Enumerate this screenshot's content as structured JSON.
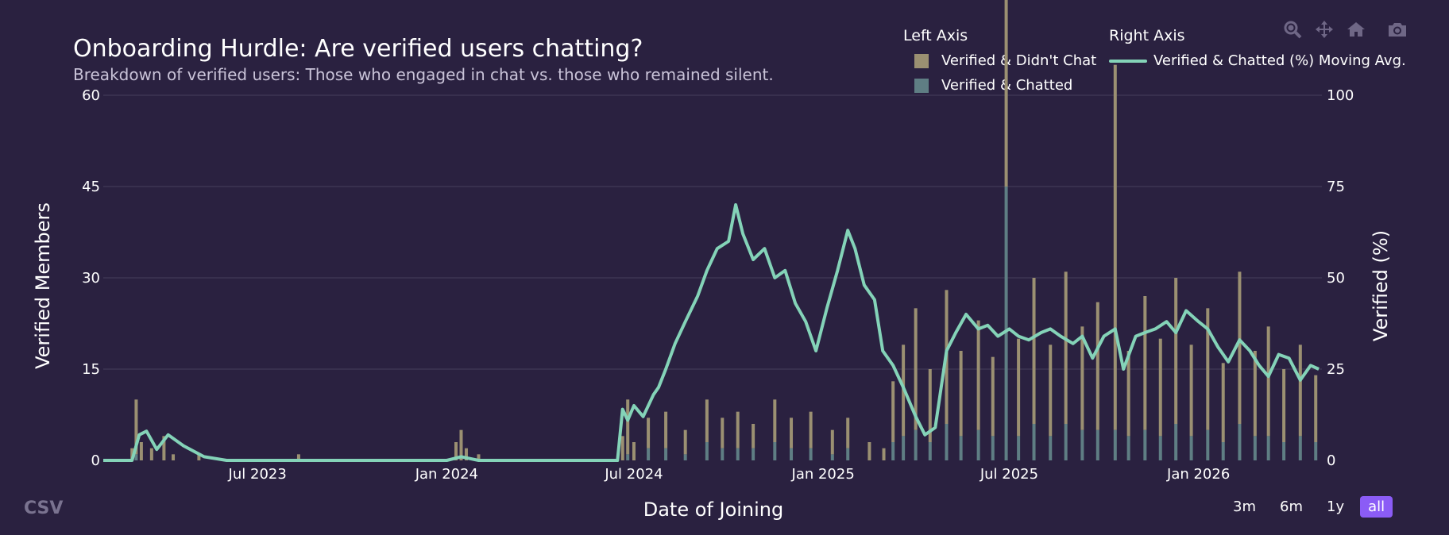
{
  "header": {
    "title": "Onboarding Hurdle: Are verified users chatting?",
    "subtitle": "Breakdown of verified users: Those who engaged in chat vs. those who remained silent."
  },
  "legend": {
    "left_group": "Left Axis",
    "right_group": "Right Axis",
    "items": [
      {
        "label": "Verified & Didn't Chat",
        "color": "#9b9072"
      },
      {
        "label": "Verified & Chatted",
        "color": "#5f7e84"
      },
      {
        "label": "Verified & Chatted (%) Moving Avg.",
        "color": "#84d3b8"
      }
    ]
  },
  "modebar": [
    "zoom-icon",
    "pan-icon",
    "home-icon",
    "camera-icon"
  ],
  "export_label": "CSV",
  "range_buttons": [
    {
      "label": "3m",
      "active": false
    },
    {
      "label": "6m",
      "active": false
    },
    {
      "label": "1y",
      "active": false
    },
    {
      "label": "all",
      "active": true
    }
  ],
  "colors": {
    "background": "#2a2140",
    "grid": "#3d3553",
    "didnt_chat": "#9b9072",
    "chatted": "#5f7e84",
    "moving_avg": "#84d3b8",
    "active_button": "#8b5cf6"
  },
  "chart_data": {
    "type": "bar",
    "barmode": "stack",
    "xlabel": "Date of Joining",
    "ylabel": "Verified Members",
    "y2label": "Verified (%)",
    "xlim": [
      "2023-02-01",
      "2026-05-01"
    ],
    "ylim": [
      0,
      60
    ],
    "y2lim": [
      0,
      100
    ],
    "x_ticks": [
      {
        "date": "2023-07-01",
        "label": "Jul 2023"
      },
      {
        "date": "2024-01-01",
        "label": "Jan 2024"
      },
      {
        "date": "2024-07-01",
        "label": "Jul 2024"
      },
      {
        "date": "2025-01-01",
        "label": "Jan 2025"
      },
      {
        "date": "2025-07-01",
        "label": "Jul 2025"
      },
      {
        "date": "2026-01-01",
        "label": "Jan 2026"
      }
    ],
    "y_ticks": [
      0,
      15,
      30,
      45,
      60
    ],
    "y2_ticks": [
      0,
      25,
      50,
      75,
      100
    ],
    "grid": true,
    "legend_position": "top-right",
    "series": [
      {
        "name": "Verified & Didn't Chat",
        "axis": "left",
        "type": "bar",
        "points": [
          [
            "2023-03-01",
            2
          ],
          [
            "2023-03-05",
            9
          ],
          [
            "2023-03-10",
            3
          ],
          [
            "2023-03-20",
            2
          ],
          [
            "2023-04-01",
            4
          ],
          [
            "2023-04-10",
            1
          ],
          [
            "2023-05-05",
            1
          ],
          [
            "2023-08-10",
            1
          ],
          [
            "2024-01-10",
            3
          ],
          [
            "2024-01-15",
            5
          ],
          [
            "2024-01-20",
            2
          ],
          [
            "2024-02-01",
            1
          ],
          [
            "2024-06-20",
            4
          ],
          [
            "2024-06-25",
            9
          ],
          [
            "2024-07-01",
            3
          ],
          [
            "2024-07-15",
            5
          ],
          [
            "2024-08-01",
            6
          ],
          [
            "2024-08-20",
            4
          ],
          [
            "2024-09-10",
            7
          ],
          [
            "2024-09-25",
            5
          ],
          [
            "2024-10-10",
            6
          ],
          [
            "2024-10-25",
            4
          ],
          [
            "2024-11-15",
            7
          ],
          [
            "2024-12-01",
            5
          ],
          [
            "2024-12-20",
            6
          ],
          [
            "2025-01-10",
            4
          ],
          [
            "2025-01-25",
            5
          ],
          [
            "2025-02-15",
            3
          ],
          [
            "2025-03-01",
            2
          ],
          [
            "2025-03-10",
            10
          ],
          [
            "2025-03-20",
            15
          ],
          [
            "2025-04-01",
            20
          ],
          [
            "2025-04-15",
            12
          ],
          [
            "2025-05-01",
            22
          ],
          [
            "2025-05-15",
            14
          ],
          [
            "2025-06-01",
            18
          ],
          [
            "2025-06-15",
            13
          ],
          [
            "2025-06-28",
            60
          ],
          [
            "2025-07-10",
            16
          ],
          [
            "2025-07-25",
            24
          ],
          [
            "2025-08-10",
            15
          ],
          [
            "2025-08-25",
            25
          ],
          [
            "2025-09-10",
            17
          ],
          [
            "2025-09-25",
            21
          ],
          [
            "2025-10-12",
            60
          ],
          [
            "2025-10-25",
            14
          ],
          [
            "2025-11-10",
            22
          ],
          [
            "2025-11-25",
            16
          ],
          [
            "2025-12-10",
            24
          ],
          [
            "2025-12-25",
            15
          ],
          [
            "2026-01-10",
            20
          ],
          [
            "2026-01-25",
            13
          ],
          [
            "2026-02-10",
            25
          ],
          [
            "2026-02-25",
            14
          ],
          [
            "2026-03-10",
            18
          ],
          [
            "2026-03-25",
            12
          ],
          [
            "2026-04-10",
            15
          ],
          [
            "2026-04-25",
            11
          ]
        ]
      },
      {
        "name": "Verified & Chatted",
        "axis": "left",
        "type": "bar",
        "points": [
          [
            "2023-03-05",
            1
          ],
          [
            "2024-06-25",
            1
          ],
          [
            "2024-07-15",
            2
          ],
          [
            "2024-08-01",
            2
          ],
          [
            "2024-08-20",
            1
          ],
          [
            "2024-09-10",
            3
          ],
          [
            "2024-09-25",
            2
          ],
          [
            "2024-10-10",
            2
          ],
          [
            "2024-10-25",
            2
          ],
          [
            "2024-11-15",
            3
          ],
          [
            "2024-12-01",
            2
          ],
          [
            "2024-12-20",
            2
          ],
          [
            "2025-01-10",
            1
          ],
          [
            "2025-01-25",
            2
          ],
          [
            "2025-03-10",
            3
          ],
          [
            "2025-03-20",
            4
          ],
          [
            "2025-04-01",
            5
          ],
          [
            "2025-04-15",
            3
          ],
          [
            "2025-05-01",
            6
          ],
          [
            "2025-05-15",
            4
          ],
          [
            "2025-06-01",
            5
          ],
          [
            "2025-06-15",
            4
          ],
          [
            "2025-06-28",
            45
          ],
          [
            "2025-07-10",
            4
          ],
          [
            "2025-07-25",
            6
          ],
          [
            "2025-08-10",
            4
          ],
          [
            "2025-08-25",
            6
          ],
          [
            "2025-09-10",
            5
          ],
          [
            "2025-09-25",
            5
          ],
          [
            "2025-10-12",
            5
          ],
          [
            "2025-10-25",
            4
          ],
          [
            "2025-11-10",
            5
          ],
          [
            "2025-11-25",
            4
          ],
          [
            "2025-12-10",
            6
          ],
          [
            "2025-12-25",
            4
          ],
          [
            "2026-01-10",
            5
          ],
          [
            "2026-01-25",
            3
          ],
          [
            "2026-02-10",
            6
          ],
          [
            "2026-02-25",
            4
          ],
          [
            "2026-03-10",
            4
          ],
          [
            "2026-03-25",
            3
          ],
          [
            "2026-04-10",
            4
          ],
          [
            "2026-04-25",
            3
          ]
        ]
      },
      {
        "name": "Verified & Chatted (%) Moving Avg.",
        "axis": "right",
        "type": "line",
        "points": [
          [
            "2023-02-01",
            0
          ],
          [
            "2023-03-01",
            0
          ],
          [
            "2023-03-08",
            7
          ],
          [
            "2023-03-15",
            8
          ],
          [
            "2023-03-25",
            3
          ],
          [
            "2023-04-05",
            7
          ],
          [
            "2023-04-20",
            4
          ],
          [
            "2023-05-10",
            1
          ],
          [
            "2023-06-01",
            0
          ],
          [
            "2024-01-01",
            0
          ],
          [
            "2024-01-15",
            1
          ],
          [
            "2024-02-01",
            0
          ],
          [
            "2024-06-15",
            0
          ],
          [
            "2024-06-20",
            14
          ],
          [
            "2024-06-25",
            11
          ],
          [
            "2024-07-01",
            15
          ],
          [
            "2024-07-10",
            12
          ],
          [
            "2024-07-20",
            18
          ],
          [
            "2024-07-25",
            20
          ],
          [
            "2024-08-01",
            25
          ],
          [
            "2024-08-10",
            32
          ],
          [
            "2024-08-20",
            38
          ],
          [
            "2024-09-01",
            45
          ],
          [
            "2024-09-10",
            52
          ],
          [
            "2024-09-20",
            58
          ],
          [
            "2024-10-01",
            60
          ],
          [
            "2024-10-08",
            70
          ],
          [
            "2024-10-15",
            62
          ],
          [
            "2024-10-25",
            55
          ],
          [
            "2024-11-05",
            58
          ],
          [
            "2024-11-15",
            50
          ],
          [
            "2024-11-25",
            52
          ],
          [
            "2024-12-05",
            43
          ],
          [
            "2024-12-15",
            38
          ],
          [
            "2024-12-25",
            30
          ],
          [
            "2025-01-05",
            42
          ],
          [
            "2025-01-15",
            52
          ],
          [
            "2025-01-25",
            63
          ],
          [
            "2025-02-01",
            58
          ],
          [
            "2025-02-10",
            48
          ],
          [
            "2025-02-20",
            44
          ],
          [
            "2025-02-28",
            30
          ],
          [
            "2025-03-10",
            26
          ],
          [
            "2025-03-20",
            20
          ],
          [
            "2025-04-01",
            12
          ],
          [
            "2025-04-10",
            7
          ],
          [
            "2025-04-20",
            9
          ],
          [
            "2025-05-01",
            30
          ],
          [
            "2025-05-10",
            35
          ],
          [
            "2025-05-20",
            40
          ],
          [
            "2025-06-01",
            36
          ],
          [
            "2025-06-10",
            37
          ],
          [
            "2025-06-20",
            34
          ],
          [
            "2025-07-01",
            36
          ],
          [
            "2025-07-10",
            34
          ],
          [
            "2025-07-20",
            33
          ],
          [
            "2025-08-01",
            35
          ],
          [
            "2025-08-10",
            36
          ],
          [
            "2025-08-20",
            34
          ],
          [
            "2025-09-01",
            32
          ],
          [
            "2025-09-10",
            34
          ],
          [
            "2025-09-20",
            28
          ],
          [
            "2025-10-01",
            34
          ],
          [
            "2025-10-12",
            36
          ],
          [
            "2025-10-20",
            25
          ],
          [
            "2025-11-01",
            34
          ],
          [
            "2025-11-10",
            35
          ],
          [
            "2025-11-20",
            36
          ],
          [
            "2025-12-01",
            38
          ],
          [
            "2025-12-10",
            35
          ],
          [
            "2025-12-20",
            41
          ],
          [
            "2026-01-01",
            38
          ],
          [
            "2026-01-10",
            36
          ],
          [
            "2026-01-20",
            31
          ],
          [
            "2026-01-30",
            27
          ],
          [
            "2026-02-10",
            33
          ],
          [
            "2026-02-20",
            30
          ],
          [
            "2026-03-01",
            26
          ],
          [
            "2026-03-10",
            23
          ],
          [
            "2026-03-20",
            29
          ],
          [
            "2026-03-30",
            28
          ],
          [
            "2026-04-10",
            22
          ],
          [
            "2026-04-20",
            26
          ],
          [
            "2026-04-28",
            25
          ]
        ]
      }
    ]
  }
}
